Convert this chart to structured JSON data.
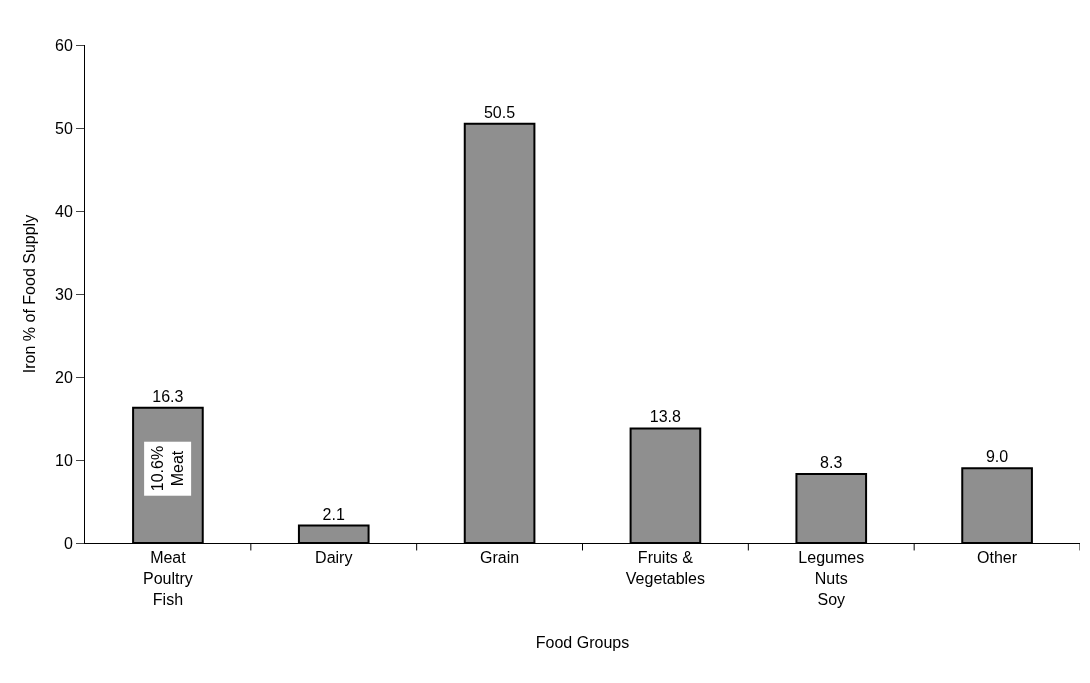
{
  "chart_data": {
    "type": "bar",
    "xlabel": "Food Groups",
    "ylabel": "Iron % of Food Supply",
    "categories": [
      "Meat\nPoultry\nFish",
      "Dairy",
      "Grain",
      "Fruits &\nVegetables",
      "Legumes\nNuts\nSoy",
      "Other"
    ],
    "values": [
      16.3,
      2.1,
      50.5,
      13.8,
      8.3,
      9.0
    ],
    "value_labels": [
      "16.3",
      "2.1",
      "50.5",
      "13.8",
      "8.3",
      "9.0"
    ],
    "color": "#8f8f8f",
    "ylim": [
      0,
      60
    ],
    "yticks": [
      0,
      10,
      20,
      30,
      40,
      50,
      60
    ],
    "annotations": [
      "10.6%\nMeat"
    ]
  }
}
